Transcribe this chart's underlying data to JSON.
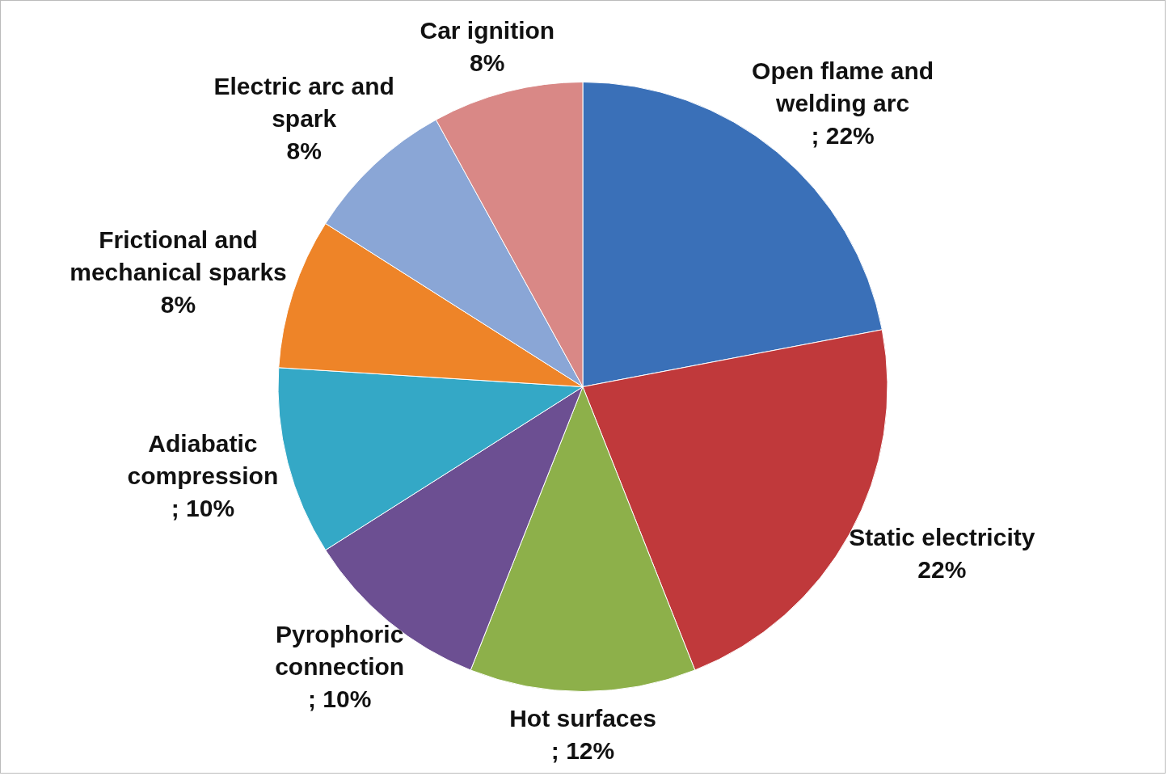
{
  "chart_data": {
    "type": "pie",
    "categories": [
      "Open flame and welding arc",
      "Static electricity",
      "Hot surfaces",
      "Pyrophoric connection",
      "Adiabatic compression",
      "Frictional and mechanical sparks",
      "Electric arc and spark",
      "Car ignition"
    ],
    "values": [
      22,
      22,
      12,
      10,
      10,
      8,
      8,
      8
    ],
    "value_labels": [
      "; 22%",
      "22%",
      "; 12%",
      "; 10%",
      "; 10%",
      "8%",
      "8%",
      "8%"
    ],
    "colors": [
      "#3a70b8",
      "#c0393b",
      "#8db04a",
      "#6c4f92",
      "#34a8c6",
      "#ee8428",
      "#8aa6d6",
      "#d98886"
    ],
    "legend": false
  }
}
